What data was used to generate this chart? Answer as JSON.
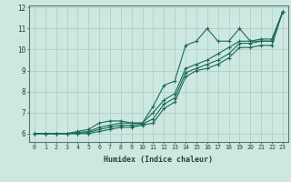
{
  "xlabel": "Humidex (Indice chaleur)",
  "ylabel": "",
  "bg_color": "#cce8e0",
  "grid_color": "#aaccc4",
  "line_color": "#1a6a5a",
  "xlim": [
    -0.5,
    23.5
  ],
  "ylim": [
    5.6,
    12.1
  ],
  "yticks": [
    6,
    7,
    8,
    9,
    10,
    11,
    12
  ],
  "xticks": [
    0,
    1,
    2,
    3,
    4,
    5,
    6,
    7,
    8,
    9,
    10,
    11,
    12,
    13,
    14,
    15,
    16,
    17,
    18,
    19,
    20,
    21,
    22,
    23
  ],
  "series": [
    [
      6.0,
      6.0,
      6.0,
      6.0,
      6.1,
      6.2,
      6.5,
      6.6,
      6.6,
      6.5,
      6.5,
      7.3,
      8.3,
      8.5,
      10.2,
      10.4,
      11.0,
      10.4,
      10.4,
      11.0,
      10.4,
      10.4,
      10.4,
      11.8
    ],
    [
      6.0,
      6.0,
      6.0,
      6.0,
      6.05,
      6.1,
      6.3,
      6.4,
      6.5,
      6.5,
      6.5,
      7.0,
      7.6,
      7.9,
      9.1,
      9.3,
      9.5,
      9.8,
      10.1,
      10.4,
      10.4,
      10.5,
      10.5,
      11.8
    ],
    [
      6.0,
      6.0,
      6.0,
      6.0,
      6.0,
      6.05,
      6.2,
      6.3,
      6.4,
      6.4,
      6.45,
      6.7,
      7.4,
      7.7,
      8.9,
      9.1,
      9.3,
      9.5,
      9.8,
      10.3,
      10.3,
      10.4,
      10.4,
      11.8
    ],
    [
      6.0,
      6.0,
      6.0,
      6.0,
      6.0,
      6.0,
      6.1,
      6.2,
      6.3,
      6.3,
      6.4,
      6.5,
      7.2,
      7.5,
      8.7,
      9.0,
      9.1,
      9.3,
      9.6,
      10.1,
      10.1,
      10.2,
      10.2,
      11.8
    ]
  ]
}
